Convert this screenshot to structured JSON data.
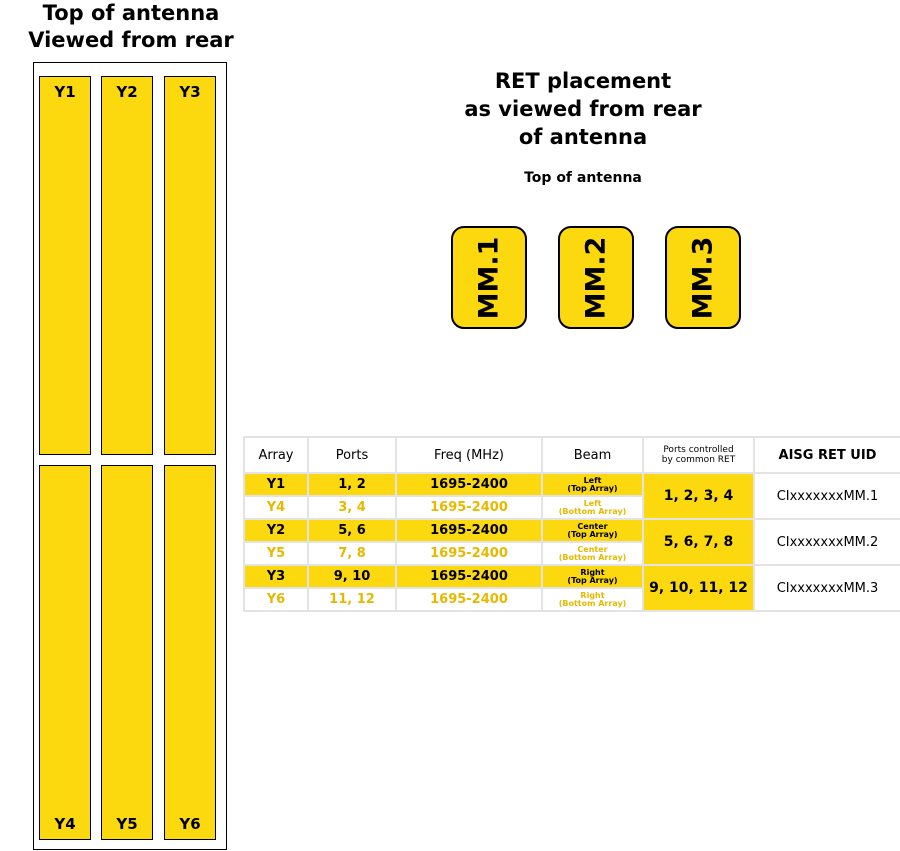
{
  "left_title": [
    "Top of antenna",
    "Viewed from rear"
  ],
  "arrays_top": [
    "Y1",
    "Y2",
    "Y3"
  ],
  "arrays_bottom": [
    "Y4",
    "Y5",
    "Y6"
  ],
  "ret_title": [
    "RET placement",
    "as viewed from rear",
    "of antenna"
  ],
  "ret_subtitle": "Top of antenna",
  "rets": [
    "MM.1",
    "MM.2",
    "MM.3"
  ],
  "table": {
    "headers": {
      "array": "Array",
      "ports": "Ports",
      "freq": "Freq (MHz)",
      "beam": "Beam",
      "controlled": [
        "Ports controlled",
        "by common RET"
      ],
      "uid": "AISG RET UID"
    },
    "groups": [
      {
        "rows": [
          {
            "array": "Y1",
            "ports": "1, 2",
            "freq": "1695-2400",
            "beam": [
              "Left",
              "(Top Array)"
            ]
          },
          {
            "array": "Y4",
            "ports": "3, 4",
            "freq": "1695-2400",
            "beam": [
              "Left",
              "(Bottom Array)"
            ]
          }
        ],
        "controlled": "1, 2, 3, 4",
        "uid": "CIxxxxxxxMM.1"
      },
      {
        "rows": [
          {
            "array": "Y2",
            "ports": "5, 6",
            "freq": "1695-2400",
            "beam": [
              "Center",
              "(Top Array)"
            ]
          },
          {
            "array": "Y5",
            "ports": "7, 8",
            "freq": "1695-2400",
            "beam": [
              "Center",
              "(Bottom Array)"
            ]
          }
        ],
        "controlled": "5, 6, 7, 8",
        "uid": "CIxxxxxxxMM.2"
      },
      {
        "rows": [
          {
            "array": "Y3",
            "ports": "9, 10",
            "freq": "1695-2400",
            "beam": [
              "Right",
              "(Top Array)"
            ]
          },
          {
            "array": "Y6",
            "ports": "11, 12",
            "freq": "1695-2400",
            "beam": [
              "Right",
              "(Bottom Array)"
            ]
          }
        ],
        "controlled": "9, 10, 11, 12",
        "uid": "CIxxxxxxxMM.3"
      }
    ]
  },
  "colors": {
    "accent_yellow": "#FCD90F",
    "muted_yellow_text": "#E8B800"
  }
}
